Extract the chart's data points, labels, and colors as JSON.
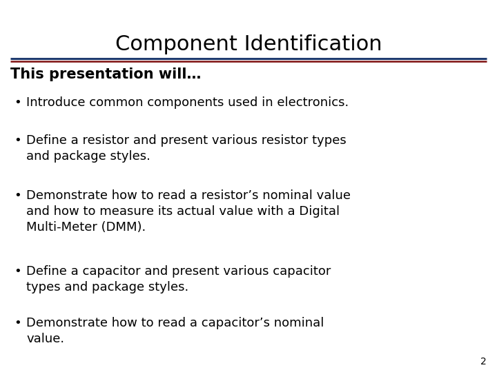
{
  "title": "Component Identification",
  "subtitle": "This presentation will…",
  "bullets": [
    "Introduce common components used in electronics.",
    "Define a resistor and present various resistor types\nand package styles.",
    "Demonstrate how to read a resistor’s nominal value\nand how to measure its actual value with a Digital\nMulti-Meter (DMM).",
    "Define a capacitor and present various capacitor\ntypes and package styles.",
    "Demonstrate how to read a capacitor’s nominal\nvalue."
  ],
  "page_number": "2",
  "bg_color": "#ffffff",
  "title_color": "#000000",
  "subtitle_color": "#000000",
  "bullet_color": "#000000",
  "line_color_top": "#1f3a6e",
  "line_color_bottom": "#7f1010",
  "title_fontsize": 22,
  "subtitle_fontsize": 15,
  "bullet_fontsize": 13,
  "page_num_fontsize": 10
}
